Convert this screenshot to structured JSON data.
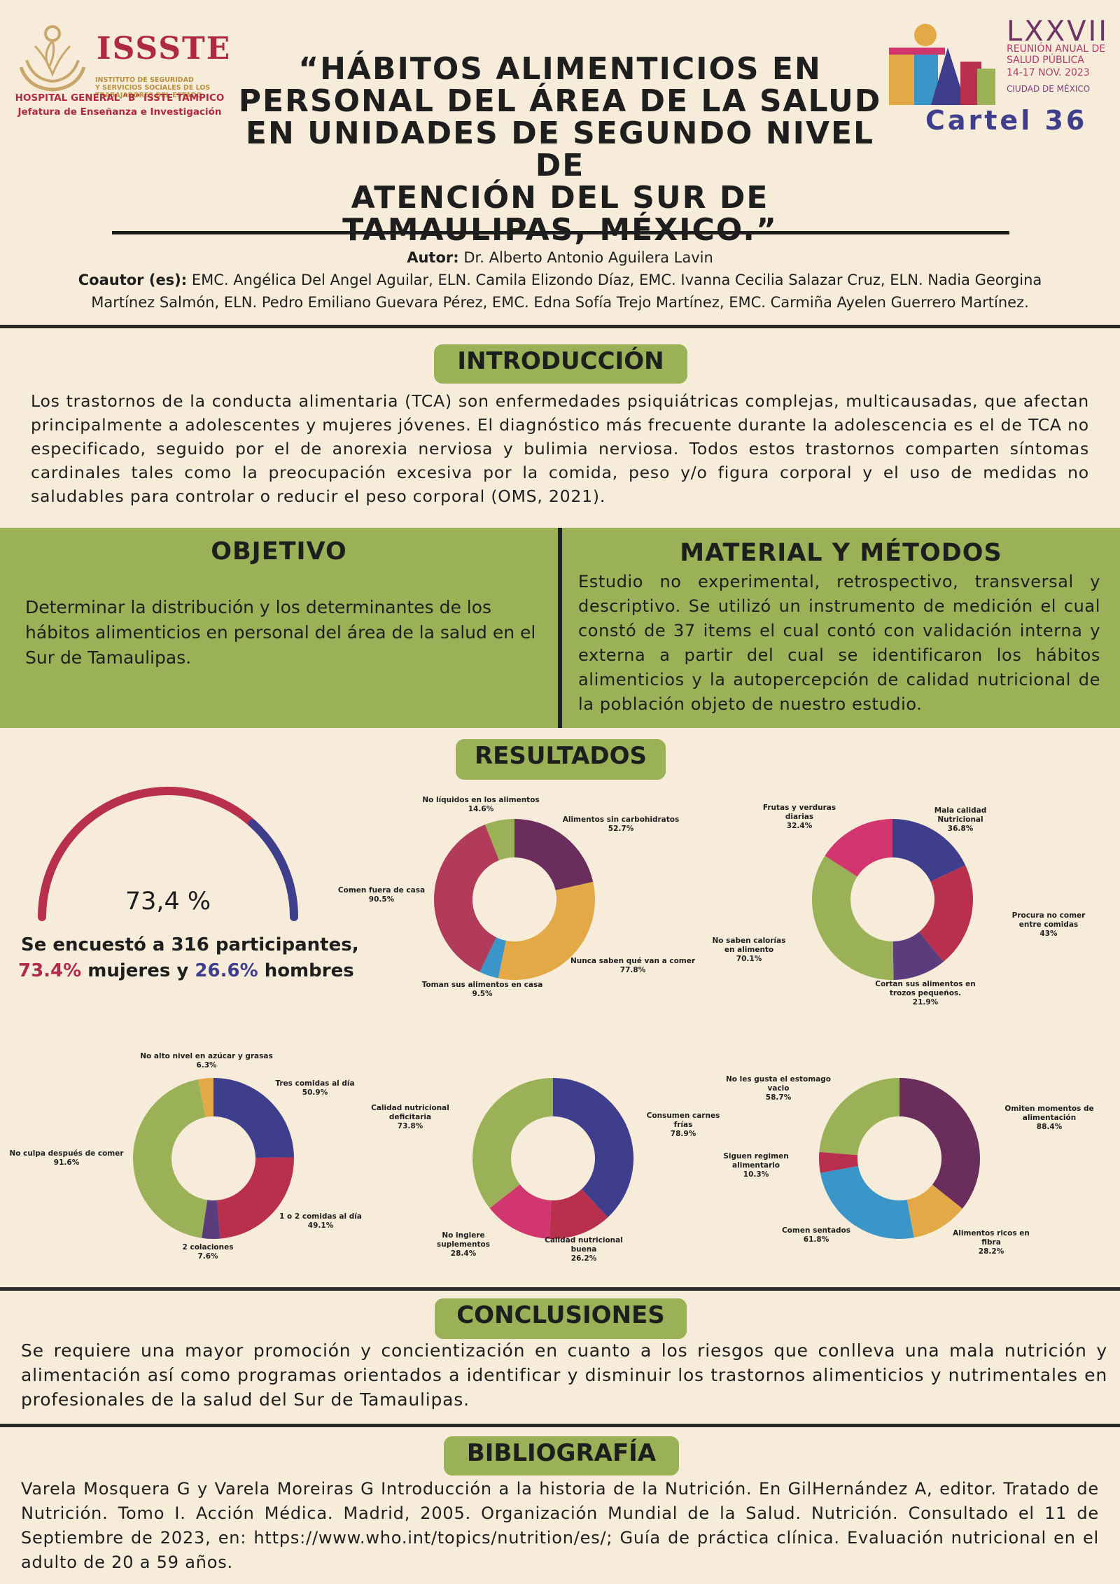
{
  "header": {
    "issste_title": "ISSSTE",
    "issste_subtitle_1": "INSTITUTO DE SEGURIDAD",
    "issste_subtitle_2": "Y SERVICIOS SOCIALES DE LOS",
    "issste_subtitle_3": "TRABAJADORES DEL ESTADO",
    "hospital_name": "HOSPITAL GENERAL \"B\" ISSTE TAMPICO",
    "hospital_dept": "Jefatura de Enseñanza e Investigación",
    "title_lines": [
      "“HÁBITOS ALIMENTICIOS EN",
      "PERSONAL DEL ÁREA DE LA SALUD",
      "EN UNIDADES DE SEGUNDO NIVEL DE",
      "ATENCIÓN DEL SUR DE",
      "TAMAULIPAS, MÉXICO.”"
    ],
    "conference_number": "LXXVII",
    "conference_line_1": "REUNIÓN ANUAL DE",
    "conference_line_2": "SALUD PÚBLICA",
    "conference_line_3": "14-17 NOV. 2023",
    "conference_line_4": "CIUDAD DE MÉXICO",
    "cartel": "Cartel 36",
    "colors": {
      "brand_red": "#b02a3f",
      "brand_gold": "#b8903e",
      "conf_purple": "#6e3466",
      "cartel_blue": "#3f3e8c"
    }
  },
  "authors": {
    "author_label": "Autor:",
    "author": "Dr. Alberto Antonio Aguilera Lavin",
    "coauthor_label": "Coautor (es):",
    "coauthors_line_1": "EMC. Angélica Del Angel Aguilar, ELN. Camila Elizondo Díaz, EMC. Ivanna Cecilia Salazar Cruz, ELN. Nadia Georgina",
    "coauthors_line_2": "Martínez Salmón, ELN. Pedro Emiliano Guevara Pérez, EMC. Edna Sofía Trejo Martínez, EMC. Carmiña Ayelen Guerrero Martínez."
  },
  "introduction": {
    "heading": "INTRODUCCIÓN",
    "text": "Los trastornos de la conducta alimentaria (TCA) son enfermedades psiquiátricas complejas, multicausadas, que afectan principalmente a adolescentes y mujeres jóvenes. El diagnóstico más frecuente durante la adolescencia es el de TCA no especificado, seguido por el de anorexia nerviosa y bulimia nerviosa. Todos estos trastornos comparten síntomas cardinales tales como la preocupación excesiva por la comida, peso y/o figura corporal y el uso de medidas no saludables para controlar o reducir el peso corporal (OMS, 2021)."
  },
  "objective": {
    "heading": "OBJETIVO",
    "text": "Determinar la distribución y los determinantes de los hábitos alimenticios en personal del área de la salud en el Sur de Tamaulipas."
  },
  "methods": {
    "heading": "MATERIAL Y MÉTODOS",
    "text": "Estudio no experimental, retrospectivo, transversal y descriptivo. Se utilizó un instrumento de medición el cual constó de 37 items el cual contó con validación interna y externa a partir del cual se identificaron los hábitos alimenticios y la autopercepción de calidad nutricional de la población objeto de nuestro estudio."
  },
  "results": {
    "heading": "RESULTADOS",
    "gauge_value": "73,4 %",
    "caption_line_1": "Se encuestó a 316 participantes,",
    "women_pct": "73.4%",
    "women_label": "mujeres y",
    "men_pct": "26.6%",
    "men_label": "hombres"
  },
  "chart_data": [
    {
      "type": "gauge",
      "values": [
        73.4,
        26.6
      ],
      "labels": [
        "mujeres",
        "hombres"
      ],
      "colors": [
        "#b8304e",
        "#3f3e8c"
      ]
    },
    {
      "type": "pie",
      "slices": [
        {
          "label": "Alimentos sin carbohidratos",
          "pct": "52.7%",
          "value": 52.7,
          "color": "#6b2d5c"
        },
        {
          "label": "Nunca saben qué van a comer",
          "pct": "77.8%",
          "value": 77.8,
          "color": "#e3a946"
        },
        {
          "label": "Toman sus alimentos en casa",
          "pct": "9.5%",
          "value": 9.5,
          "color": "#3a96c8"
        },
        {
          "label": "Comen fuera de casa",
          "pct": "90.5%",
          "value": 90.5,
          "color": "#b23a5a"
        },
        {
          "label": "No líquidos en los alimentos",
          "pct": "14.6%",
          "value": 14.6,
          "color": "#9bb158"
        }
      ]
    },
    {
      "type": "pie",
      "slices": [
        {
          "label": "Mala calidad Nutricional",
          "pct": "36.8%",
          "value": 36.8,
          "color": "#3f3e8c"
        },
        {
          "label": "Procura no comer entre comidas",
          "pct": "43%",
          "value": 43,
          "color": "#b8304e"
        },
        {
          "label": "Cortan sus alimentos en trozos pequeños.",
          "pct": "21.9%",
          "value": 21.9,
          "color": "#5b3d7e"
        },
        {
          "label": "No saben calorías en alimento",
          "pct": "70.1%",
          "value": 70.1,
          "color": "#9bb158"
        },
        {
          "label": "Frutas y verduras diarias",
          "pct": "32.4%",
          "value": 32.4,
          "color": "#d2366e"
        }
      ]
    },
    {
      "type": "pie",
      "slices": [
        {
          "label": "Tres comidas al día",
          "pct": "50.9%",
          "value": 50.9,
          "color": "#3f3e8c"
        },
        {
          "label": "1 o 2 comidas al día",
          "pct": "49.1%",
          "value": 49.1,
          "color": "#b8304e"
        },
        {
          "label": "2 colaciones",
          "pct": "7.6%",
          "value": 7.6,
          "color": "#5b3d7e"
        },
        {
          "label": "No culpa después de comer",
          "pct": "91.6%",
          "value": 91.6,
          "color": "#9bb158"
        },
        {
          "label": "No alto nivel en azúcar y grasas",
          "pct": "6.3%",
          "value": 6.3,
          "color": "#e3a946"
        }
      ]
    },
    {
      "type": "pie",
      "slices": [
        {
          "label": "Consumen carnes frías",
          "pct": "78.9%",
          "value": 78.9,
          "color": "#3f3e8c"
        },
        {
          "label": "Calidad nutricional buena",
          "pct": "26.2%",
          "value": 26.2,
          "color": "#b8304e"
        },
        {
          "label": "No ingiere suplementos",
          "pct": "28.4%",
          "value": 28.4,
          "color": "#d2366e"
        },
        {
          "label": "Calidad nutricional deficitaria",
          "pct": "73.8%",
          "value": 73.8,
          "color": "#9bb158"
        }
      ]
    },
    {
      "type": "pie",
      "slices": [
        {
          "label": "Omiten momentos de alimentación",
          "pct": "88.4%",
          "value": 88.4,
          "color": "#6b2d5c"
        },
        {
          "label": "Alimentos ricos en fibra",
          "pct": "28.2%",
          "value": 28.2,
          "color": "#e3a946"
        },
        {
          "label": "Comen sentados",
          "pct": "61.8%",
          "value": 61.8,
          "color": "#3a96c8"
        },
        {
          "label": "Siguen regimen alimentario",
          "pct": "10.3%",
          "value": 10.3,
          "color": "#b8304e"
        },
        {
          "label": "No les gusta el estomago vacio",
          "pct": "58.7%",
          "value": 58.7,
          "color": "#9bb158"
        }
      ]
    }
  ],
  "conclusions": {
    "heading": "CONCLUSIONES",
    "text": "Se requiere una mayor promoción y concientización en cuanto a los riesgos que conlleva una mala nutrición y alimentación así como programas orientados a identificar y disminuir los trastornos alimenticios y nutrimentales en profesionales de la salud del Sur de Tamaulipas."
  },
  "bibliography": {
    "heading": "BIBLIOGRAFÍA",
    "text": "Varela Mosquera G y Varela Moreiras G Introducción a la historia de la Nutrición. En GilHernández A, editor. Tratado de Nutrición. Tomo I. Acción Médica. Madrid, 2005. Organización Mundial de la Salud. Nutrición. Consultado el 11 de Septiembre de 2023, en: https://www.who.int/topics/nutrition/es/; Guía de práctica clínica. Evaluación nutricional en el adulto de 20 a 59 años."
  }
}
